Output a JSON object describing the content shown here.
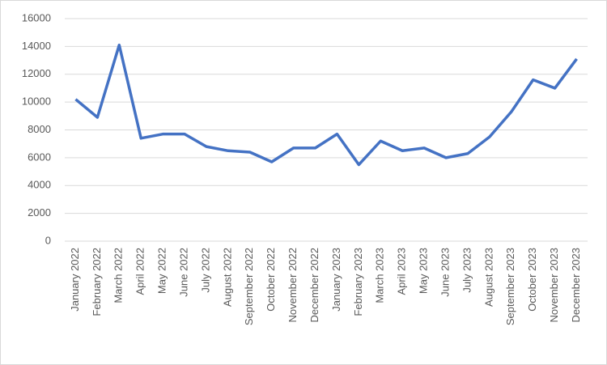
{
  "chart_data": {
    "type": "line",
    "categories": [
      "January 2022",
      "February 2022",
      "March 2022",
      "April 2022",
      "May 2022",
      "June 2022",
      "July 2022",
      "August 2022",
      "September 2022",
      "October 2022",
      "November 2022",
      "December 2022",
      "January 2023",
      "February 2023",
      "March 2023",
      "April 2023",
      "May 2023",
      "June 2023",
      "July 2023",
      "August 2023",
      "September 2023",
      "October 2023",
      "November 2023",
      "December 2023"
    ],
    "values": [
      10200,
      8900,
      14100,
      7400,
      7700,
      7700,
      6800,
      6500,
      6400,
      5700,
      6700,
      6700,
      7700,
      5500,
      7200,
      6500,
      6700,
      6000,
      6300,
      7500,
      9300,
      11600,
      11000,
      13100
    ],
    "color": "#4472c4",
    "ylim": [
      0,
      16000
    ],
    "yticks": [
      0,
      2000,
      4000,
      6000,
      8000,
      10000,
      12000,
      14000,
      16000
    ],
    "grid": true
  }
}
